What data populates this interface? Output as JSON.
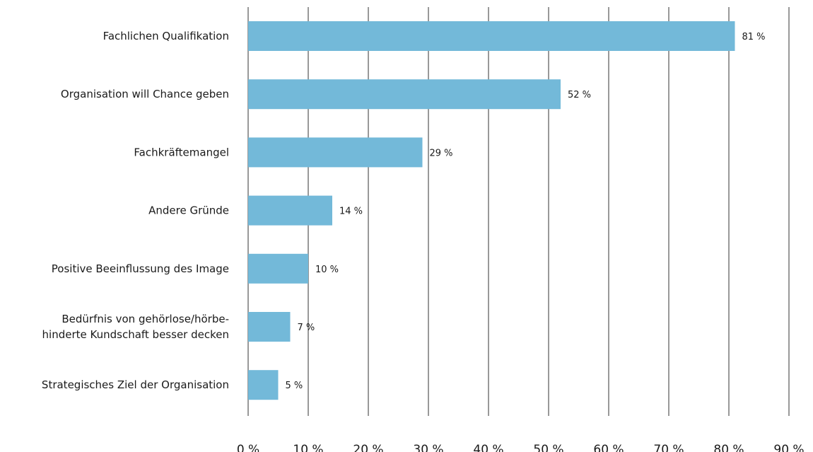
{
  "chart_data": {
    "type": "bar",
    "orientation": "horizontal",
    "categories": [
      [
        "Fachlichen Qualifikation"
      ],
      [
        "Organisation will Chance geben"
      ],
      [
        "Fachkräftemangel"
      ],
      [
        "Andere Gründe"
      ],
      [
        "Positive Beeinflussung des Image"
      ],
      [
        "Bedürfnis von gehörlose/hörbe-",
        "hinderte Kundschaft besser decken"
      ],
      [
        "Strategisches Ziel der Organisation"
      ]
    ],
    "values": [
      81,
      52,
      29,
      14,
      10,
      7,
      5
    ],
    "value_labels": [
      "81 %",
      "52 %",
      "29 %",
      "14 %",
      "10 %",
      "7 %",
      "5 %"
    ],
    "xlim": [
      0,
      90
    ],
    "x_ticks": [
      0,
      10,
      20,
      30,
      40,
      50,
      60,
      70,
      80,
      90
    ],
    "x_tick_labels": [
      "0 %",
      "10 %",
      "20 %",
      "30 %",
      "40 %",
      "50 %",
      "60 %",
      "70 %",
      "80 %",
      "90 %"
    ],
    "grid": "vertical",
    "bar_color": "#73b9d9",
    "grid_color": "#333333"
  }
}
